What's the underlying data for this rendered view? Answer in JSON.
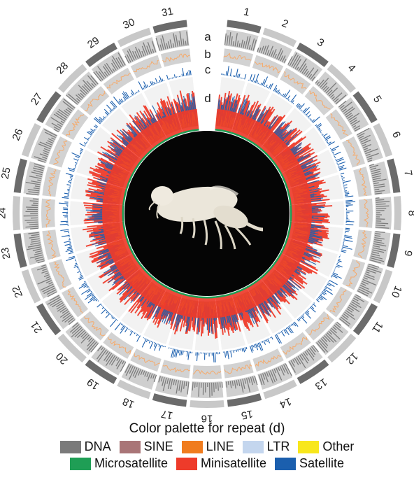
{
  "chromosomes": [
    "1",
    "2",
    "3",
    "4",
    "5",
    "6",
    "7",
    "8",
    "9",
    "10",
    "11",
    "12",
    "13",
    "14",
    "15",
    "16",
    "17",
    "18",
    "19",
    "20",
    "21",
    "22",
    "23",
    "24",
    "25",
    "26",
    "27",
    "28",
    "29",
    "30",
    "31"
  ],
  "track_labels": [
    "a",
    "b",
    "c",
    "d"
  ],
  "legend": {
    "title": "Color palette for repeat (d)",
    "items": [
      {
        "label": "DNA",
        "color": "#7a7a7a"
      },
      {
        "label": "SINE",
        "color": "#a97577"
      },
      {
        "label": "LINE",
        "color": "#f07c1e"
      },
      {
        "label": "LTR",
        "color": "#c4d6ee"
      },
      {
        "label": "Other",
        "color": "#f8e71c"
      },
      {
        "label": "Microsatellite",
        "color": "#1f9e55"
      },
      {
        "label": "Minisatellite",
        "color": "#ee3b2a"
      },
      {
        "label": "Satellite",
        "color": "#1b5fae"
      }
    ]
  },
  "colors": {
    "ideogram_dark": "#6b6b6b",
    "ideogram_light": "#c8c8c8",
    "track_a_bg": "#cfcfcf",
    "track_a_fg": "#7c7c7c",
    "track_b_bg": "#d2d2d2",
    "track_b_fg": "#f5ab6d",
    "track_c_fg": "#1b5fae",
    "center_bg": "#050505",
    "organism": "#e9e4d8"
  }
}
